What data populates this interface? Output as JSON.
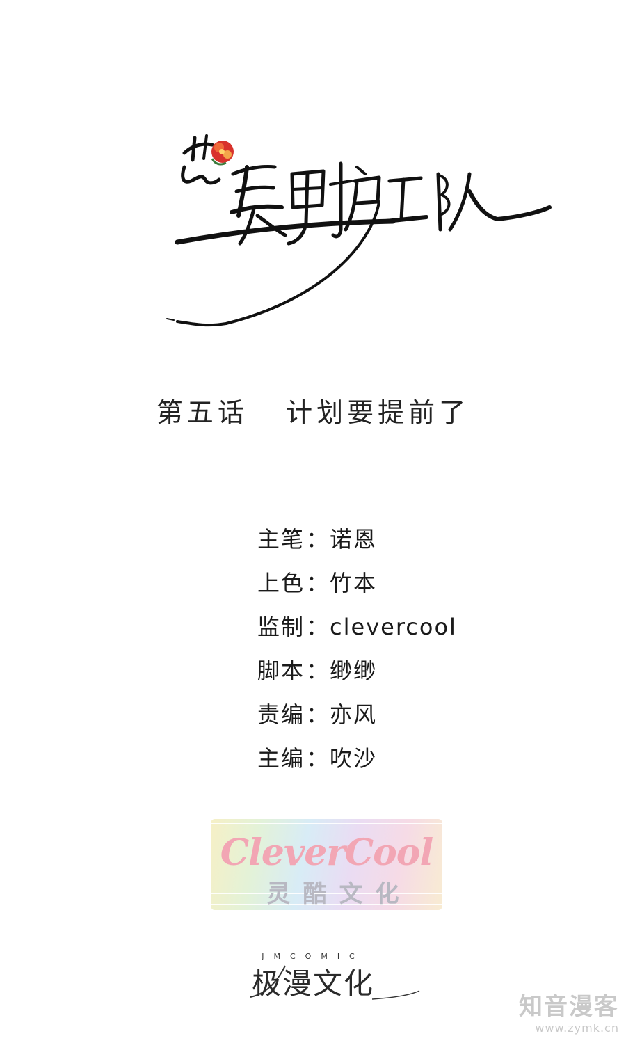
{
  "logo": {
    "title": "花美男护卫队",
    "flower_color": "#d8322c"
  },
  "chapter": {
    "number": "第五话",
    "name": "计划要提前了"
  },
  "credits": [
    {
      "role": "主笔",
      "name": "诺恩"
    },
    {
      "role": "上色",
      "name": "竹本"
    },
    {
      "role": "监制",
      "name": "clevercool"
    },
    {
      "role": "脚本",
      "name": "缈缈"
    },
    {
      "role": "责编",
      "name": "亦风"
    },
    {
      "role": "主编",
      "name": "吹沙"
    }
  ],
  "credit_separator": "：",
  "studio_badge": {
    "name_en": "CleverCool",
    "name_cn": "灵酷文化",
    "accent": "#f2a6b4"
  },
  "publisher": {
    "name_en": "JMCOMIC",
    "name_cn": "极漫文化"
  },
  "watermark": {
    "name": "知音漫客",
    "url": "www.zymk.cn"
  }
}
